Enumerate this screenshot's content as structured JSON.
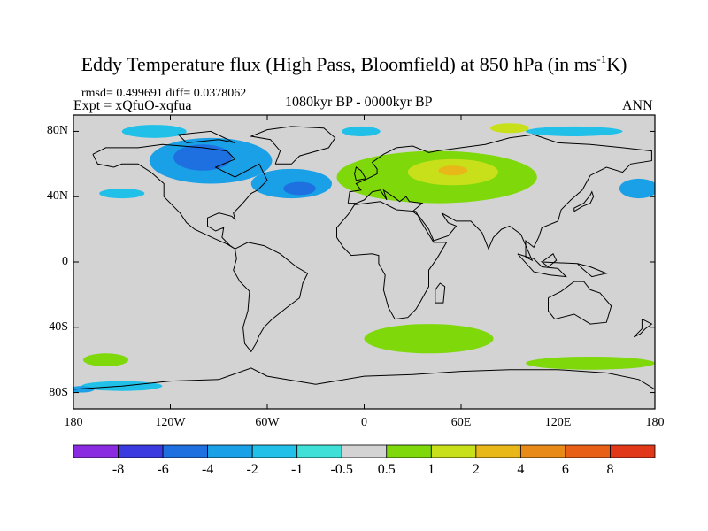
{
  "title": {
    "main": "Eddy Temperature flux (High Pass, Bloomfield) at 850 hPa (in ms",
    "sup": "-1",
    "tail": "K)"
  },
  "stats": "rmsd= 0.499691 diff= 0.0378062",
  "expt": "Expt = xQfuO-xqfua",
  "period": "1080kyr BP - 0000kyr BP",
  "season": "ANN",
  "chart_data": {
    "type": "heatmap",
    "projection": "cylindrical-equidistant",
    "xlim": [
      -180,
      180
    ],
    "ylim": [
      -90,
      90
    ],
    "x_ticks": [
      {
        "value": -180,
        "label": "180"
      },
      {
        "value": -120,
        "label": "120W"
      },
      {
        "value": -60,
        "label": "60W"
      },
      {
        "value": 0,
        "label": "0"
      },
      {
        "value": 60,
        "label": "60E"
      },
      {
        "value": 120,
        "label": "120E"
      },
      {
        "value": 180,
        "label": "180"
      }
    ],
    "y_ticks": [
      {
        "value": 80,
        "label": "80N"
      },
      {
        "value": 40,
        "label": "40N"
      },
      {
        "value": 0,
        "label": "0"
      },
      {
        "value": -40,
        "label": "40S"
      },
      {
        "value": -80,
        "label": "80S"
      }
    ],
    "colorbar": {
      "levels": [
        "-8",
        "-6",
        "-4",
        "-2",
        "-1",
        "-0.5",
        "0.5",
        "1",
        "2",
        "4",
        "6",
        "8"
      ],
      "colors": [
        "#8a2be2",
        "#3a3ae0",
        "#1e6fe0",
        "#1aa0e6",
        "#20c0e8",
        "#3ee0d8",
        "#d3d3d3",
        "#7ed80a",
        "#c8e01a",
        "#e8b818",
        "#e88a18",
        "#e86018",
        "#e03818"
      ]
    },
    "background_class": "#d3d3d3",
    "regions": [
      {
        "name": "north-america-negative",
        "class": 3,
        "center": [
          -95,
          62
        ],
        "radius": [
          38,
          14
        ]
      },
      {
        "name": "north-america-core",
        "class": 2,
        "center": [
          -100,
          64
        ],
        "radius": [
          18,
          8
        ]
      },
      {
        "name": "atlantic-negative",
        "class": 3,
        "center": [
          -45,
          48
        ],
        "radius": [
          25,
          9
        ]
      },
      {
        "name": "atlantic-core",
        "class": 2,
        "center": [
          -40,
          45
        ],
        "radius": [
          10,
          4
        ]
      },
      {
        "name": "arctic-canada-negative",
        "class": 4,
        "center": [
          -130,
          80
        ],
        "radius": [
          20,
          4
        ]
      },
      {
        "name": "pacific-ne-negative",
        "class": 4,
        "center": [
          -150,
          42
        ],
        "radius": [
          14,
          3
        ]
      },
      {
        "name": "pacific-w-negative",
        "class": 3,
        "center": [
          170,
          45
        ],
        "radius": [
          12,
          6
        ]
      },
      {
        "name": "greenland-north-negative",
        "class": 4,
        "center": [
          -2,
          80
        ],
        "radius": [
          12,
          3
        ]
      },
      {
        "name": "arctic-siberia-negative",
        "class": 4,
        "center": [
          130,
          80
        ],
        "radius": [
          30,
          3
        ]
      },
      {
        "name": "eurasia-positive",
        "class": 7,
        "center": [
          45,
          52
        ],
        "radius": [
          62,
          16
        ]
      },
      {
        "name": "eurasia-strong",
        "class": 8,
        "center": [
          55,
          55
        ],
        "radius": [
          28,
          8
        ]
      },
      {
        "name": "eurasia-core",
        "class": 9,
        "center": [
          55,
          56
        ],
        "radius": [
          9,
          3
        ]
      },
      {
        "name": "siberia-strong",
        "class": 8,
        "center": [
          90,
          82
        ],
        "radius": [
          12,
          3
        ]
      },
      {
        "name": "southern-ocean-positive",
        "class": 7,
        "center": [
          40,
          -47
        ],
        "radius": [
          40,
          9
        ]
      },
      {
        "name": "south-pacific-positive",
        "class": 7,
        "center": [
          140,
          -62
        ],
        "radius": [
          40,
          4
        ]
      },
      {
        "name": "south-pacific-west-positive",
        "class": 7,
        "center": [
          -160,
          -60
        ],
        "radius": [
          14,
          4
        ]
      },
      {
        "name": "antarctic-coast-negative",
        "class": 4,
        "center": [
          -150,
          -76
        ],
        "radius": [
          25,
          3
        ]
      },
      {
        "name": "ross-negative",
        "class": 3,
        "center": [
          -175,
          -78
        ],
        "radius": [
          8,
          2
        ]
      }
    ]
  }
}
